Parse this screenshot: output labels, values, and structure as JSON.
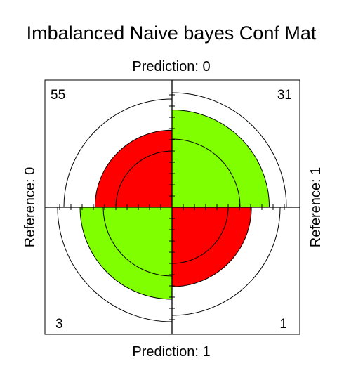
{
  "chart_data": {
    "type": "fourfold",
    "title": "Imbalanced Naive bayes Conf Mat",
    "labels": {
      "top": "Prediction: 0",
      "bottom": "Prediction: 1",
      "left": "Reference: 0",
      "right": "Reference: 1"
    },
    "cells": [
      {
        "quadrant": "top-left",
        "prediction": "0",
        "reference": "0",
        "count": "55",
        "fraction": 0.47,
        "color": "#ff0000"
      },
      {
        "quadrant": "top-right",
        "prediction": "0",
        "reference": "1",
        "count": "31",
        "fraction": 0.75,
        "color": "#80ff00"
      },
      {
        "quadrant": "bottom-left",
        "prediction": "1",
        "reference": "0",
        "count": "3",
        "fraction": 0.67,
        "color": "#80ff00"
      },
      {
        "quadrant": "bottom-right",
        "prediction": "1",
        "reference": "1",
        "count": "1",
        "fraction": 0.5,
        "color": "#ff0000"
      }
    ],
    "inner_ring_fraction": 0.25,
    "outer_ring_fraction": 0.95,
    "grid": false
  }
}
